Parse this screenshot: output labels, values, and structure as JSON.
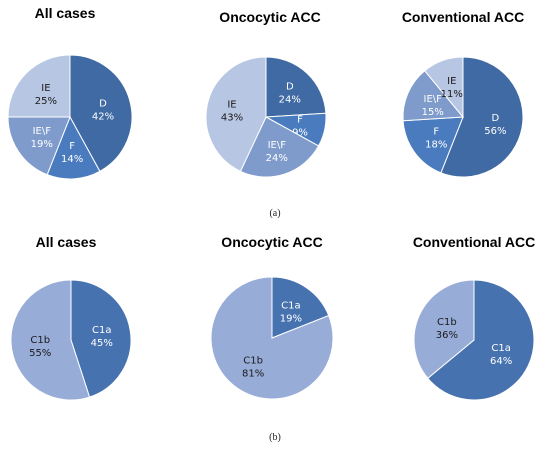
{
  "colors": {
    "D": "#3f6aa3",
    "F": "#4a7bbf",
    "IE\\F": "#7f9bcb",
    "IE": "#b7c6e2",
    "C1a": "#4672b0",
    "C1b": "#98acd8",
    "edge": "#ffffff",
    "label_light": "#ffffff",
    "label_dark": "#1a1a1a"
  },
  "panels": [
    {
      "label": "(a)"
    },
    {
      "label": "(b)"
    }
  ],
  "chart_data": [
    {
      "type": "pie",
      "title": "All cases",
      "panel": "(a)",
      "slices": [
        {
          "name": "D",
          "value": 42,
          "display": "42%"
        },
        {
          "name": "F",
          "value": 14,
          "display": "14%"
        },
        {
          "name": "IE\\F",
          "value": 19,
          "display": "19%"
        },
        {
          "name": "IE",
          "value": 25,
          "display": "25%"
        }
      ]
    },
    {
      "type": "pie",
      "title": "Oncocytic ACC",
      "panel": "(a)",
      "slices": [
        {
          "name": "D",
          "value": 24,
          "display": "24%"
        },
        {
          "name": "F",
          "value": 9,
          "display": "9%"
        },
        {
          "name": "IE\\F",
          "value": 24,
          "display": "24%"
        },
        {
          "name": "IE",
          "value": 43,
          "display": "43%"
        }
      ]
    },
    {
      "type": "pie",
      "title": "Conventional ACC",
      "panel": "(a)",
      "slices": [
        {
          "name": "D",
          "value": 56,
          "display": "56%"
        },
        {
          "name": "F",
          "value": 18,
          "display": "18%"
        },
        {
          "name": "IE\\F",
          "value": 15,
          "display": "15%"
        },
        {
          "name": "IE",
          "value": 11,
          "display": "11%"
        }
      ]
    },
    {
      "type": "pie",
      "title": "All cases",
      "panel": "(b)",
      "slices": [
        {
          "name": "C1a",
          "value": 45,
          "display": "45%"
        },
        {
          "name": "C1b",
          "value": 55,
          "display": "55%"
        }
      ]
    },
    {
      "type": "pie",
      "title": "Oncocytic ACC",
      "panel": "(b)",
      "slices": [
        {
          "name": "C1a",
          "value": 19,
          "display": "19%"
        },
        {
          "name": "C1b",
          "value": 81,
          "display": "81%"
        }
      ]
    },
    {
      "type": "pie",
      "title": "Conventional ACC",
      "panel": "(b)",
      "slices": [
        {
          "name": "C1a",
          "value": 64,
          "display": "64%"
        },
        {
          "name": "C1b",
          "value": 36,
          "display": "36%"
        }
      ]
    }
  ]
}
